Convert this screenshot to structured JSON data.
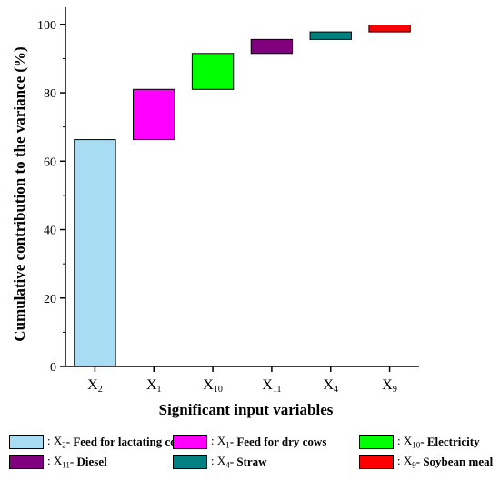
{
  "chart_data": {
    "type": "bar",
    "subtype": "waterfall",
    "ylabel": "Cumulative contribution to the variance (%)",
    "xlabel": "Significant input variables",
    "ylim": [
      0,
      105
    ],
    "yticks": [
      0,
      20,
      40,
      60,
      80,
      100
    ],
    "grid": false,
    "legend_position": "bottom",
    "categories": [
      {
        "base": "X",
        "sub": "2"
      },
      {
        "base": "X",
        "sub": "1"
      },
      {
        "base": "X",
        "sub": "10"
      },
      {
        "base": "X",
        "sub": "11"
      },
      {
        "base": "X",
        "sub": "4"
      },
      {
        "base": "X",
        "sub": "9"
      }
    ],
    "series": [
      {
        "start": 0,
        "end": 66.3,
        "color": "#a8dcf2"
      },
      {
        "start": 66.3,
        "end": 81.0,
        "color": "#ff00ff"
      },
      {
        "start": 81.0,
        "end": 91.5,
        "color": "#00ff00"
      },
      {
        "start": 91.5,
        "end": 95.6,
        "color": "#800080"
      },
      {
        "start": 95.6,
        "end": 97.8,
        "color": "#008080"
      },
      {
        "start": 97.8,
        "end": 99.8,
        "color": "#ff0000"
      }
    ],
    "legend": [
      {
        "code": "X",
        "sub": "2",
        "label": "- Feed for lactating cows",
        "color": "#a8dcf2"
      },
      {
        "code": "X",
        "sub": "1",
        "label": "- Feed for dry cows",
        "color": "#ff00ff"
      },
      {
        "code": "X",
        "sub": "10",
        "label": "- Electricity",
        "color": "#00ff00"
      },
      {
        "code": "X",
        "sub": "11",
        "label": "- Diesel",
        "color": "#800080"
      },
      {
        "code": "X",
        "sub": "4",
        "label": "- Straw",
        "color": "#008080"
      },
      {
        "code": "X",
        "sub": "9",
        "label": "- Soybean meal",
        "color": "#ff0000"
      }
    ]
  }
}
